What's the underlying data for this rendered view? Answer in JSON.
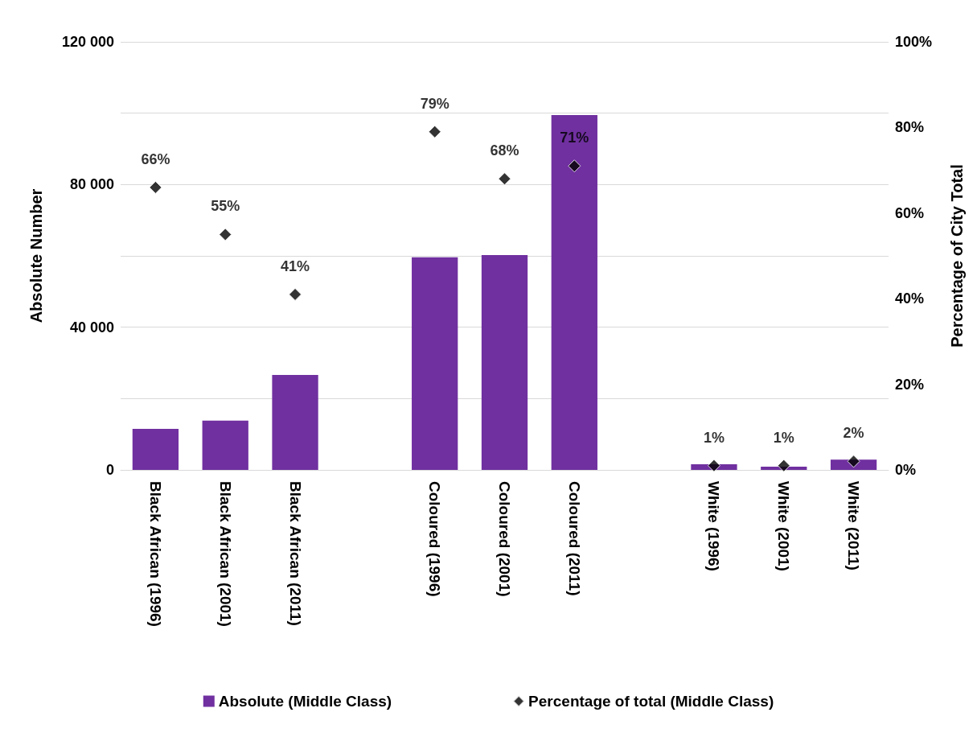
{
  "chart_data": {
    "type": "bar",
    "ylabel": "Absolute Number",
    "y2label": "Percentage of City Total",
    "categories": [
      "Black African (1996)",
      "Black African (2001)",
      "Black African (2011)",
      null,
      "Coloured (1996)",
      "Coloured (2001)",
      "Coloured (2011)",
      null,
      "White (1996)",
      "White (2001)",
      "White (2011)"
    ],
    "series": [
      {
        "name": "Absolute (Middle Class)",
        "color": "#7030a0",
        "values": [
          11500,
          13800,
          26600,
          null,
          59600,
          60200,
          99500,
          null,
          1600,
          900,
          2900
        ]
      },
      {
        "name": "Percentage of total (Middle Class)",
        "type": "scatter",
        "axis": "y2",
        "color": "#000000",
        "values": [
          66,
          55,
          41,
          null,
          79,
          68,
          71,
          null,
          1,
          1,
          2
        ],
        "value_labels": [
          "66%",
          "55%",
          "41%",
          null,
          "79%",
          "68%",
          "71%",
          null,
          "1%",
          "1%",
          "2%"
        ]
      }
    ],
    "ylim": [
      0,
      120000
    ],
    "yticks": [
      {
        "value": 0,
        "label": "0"
      },
      {
        "value": 20000,
        "label": null
      },
      {
        "value": 40000,
        "label": "40 000"
      },
      {
        "value": 60000,
        "label": null
      },
      {
        "value": 80000,
        "label": "80 000"
      },
      {
        "value": 100000,
        "label": null
      },
      {
        "value": 120000,
        "label": "120 000"
      }
    ],
    "y2lim": [
      0,
      100
    ],
    "y2ticks": [
      {
        "value": 0,
        "label": "0%"
      },
      {
        "value": 20,
        "label": "20%"
      },
      {
        "value": 40,
        "label": "40%"
      },
      {
        "value": 60,
        "label": "60%"
      },
      {
        "value": 80,
        "label": "80%"
      },
      {
        "value": 100,
        "label": "100%"
      }
    ],
    "grid": "y",
    "legend": "bottom",
    "marker": "diamond"
  }
}
